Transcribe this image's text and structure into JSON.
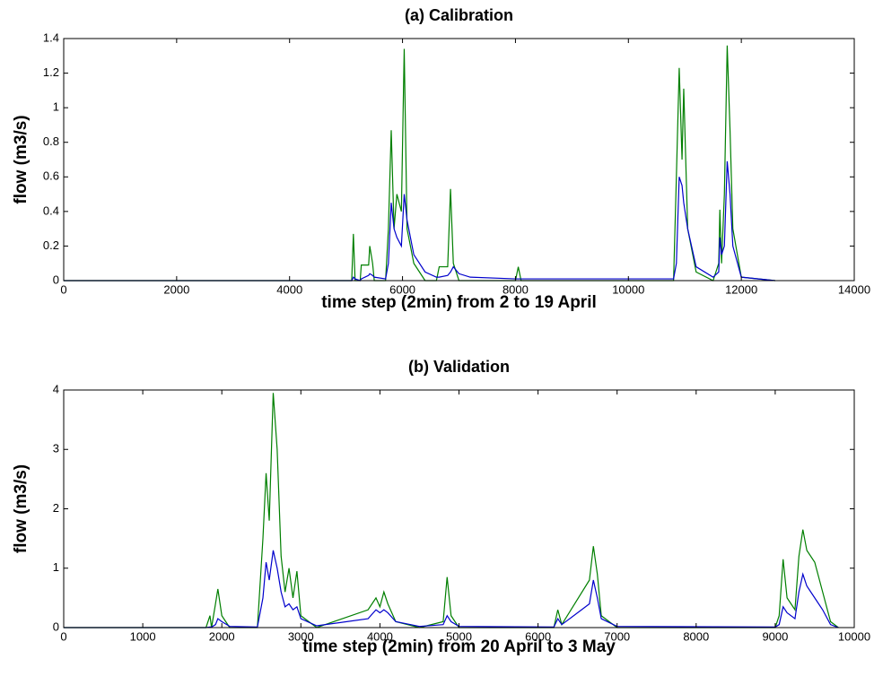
{
  "chart_data": [
    {
      "type": "line",
      "title": "(a) Calibration",
      "x_label": "time step (2min) from 2 to 19 April",
      "y_label": "flow (m3/s)",
      "x": [
        0,
        5050,
        5100,
        5130,
        5160,
        5250,
        5270,
        5400,
        5420,
        5470,
        5500,
        5700,
        5750,
        5800,
        5850,
        5900,
        5980,
        6030,
        6080,
        6200,
        6400,
        6600,
        6650,
        6800,
        6850,
        6900,
        7000,
        7200,
        8000,
        8050,
        8100,
        10800,
        10850,
        10900,
        10950,
        10980,
        11050,
        11200,
        11500,
        11600,
        11620,
        11650,
        11700,
        11750,
        11800,
        11850,
        12000,
        12600
      ],
      "series": [
        {
          "color": "#007f00",
          "values": [
            0,
            0,
            0,
            0.27,
            0,
            0,
            0.09,
            0.09,
            0.2,
            0.1,
            0,
            0,
            0.3,
            0.87,
            0.3,
            0.5,
            0.4,
            1.34,
            0.3,
            0.1,
            0,
            0,
            0.08,
            0.08,
            0.53,
            0.1,
            0,
            0,
            0,
            0.08,
            0,
            0,
            0.6,
            1.23,
            0.7,
            1.11,
            0.3,
            0.05,
            0,
            0.1,
            0.41,
            0.1,
            0.5,
            1.36,
            0.87,
            0.3,
            0.02,
            0
          ]
        },
        {
          "color": "#0000cc",
          "values": [
            0,
            0,
            0,
            0.02,
            0.01,
            0,
            0.01,
            0.03,
            0.04,
            0.03,
            0.02,
            0.01,
            0.1,
            0.45,
            0.3,
            0.25,
            0.2,
            0.5,
            0.35,
            0.15,
            0.05,
            0.02,
            0.02,
            0.03,
            0.05,
            0.08,
            0.04,
            0.02,
            0.01,
            0.01,
            0.01,
            0.01,
            0.1,
            0.6,
            0.55,
            0.45,
            0.3,
            0.08,
            0.02,
            0.05,
            0.25,
            0.15,
            0.2,
            0.69,
            0.5,
            0.2,
            0.02,
            0
          ]
        }
      ],
      "xlim": [
        0,
        14000
      ],
      "xticks": [
        0,
        2000,
        4000,
        6000,
        8000,
        10000,
        12000,
        14000
      ],
      "ylim": [
        0,
        1.4
      ],
      "yticks": [
        0,
        0.2,
        0.4,
        0.6,
        0.8,
        1,
        1.2,
        1.4
      ]
    },
    {
      "type": "line",
      "title": "(b) Validation",
      "x_label": "time step (2min) from 20 April to 3 May",
      "y_label": "flow (m3/s)",
      "x": [
        0,
        1800,
        1850,
        1870,
        1920,
        1950,
        2000,
        2100,
        2450,
        2520,
        2560,
        2600,
        2650,
        2700,
        2750,
        2800,
        2850,
        2900,
        2950,
        3000,
        3200,
        3850,
        3950,
        4000,
        4050,
        4100,
        4200,
        4500,
        4800,
        4850,
        4900,
        5000,
        6200,
        6250,
        6300,
        6650,
        6700,
        6750,
        6800,
        7000,
        9000,
        9050,
        9100,
        9150,
        9250,
        9300,
        9350,
        9400,
        9500,
        9600,
        9700,
        9800
      ],
      "series": [
        {
          "color": "#007f00",
          "values": [
            0,
            0,
            0.2,
            0,
            0.4,
            0.65,
            0.2,
            0,
            0,
            1.5,
            2.6,
            1.8,
            3.95,
            3.0,
            1.2,
            0.6,
            1.0,
            0.5,
            0.95,
            0.2,
            0,
            0.3,
            0.5,
            0.35,
            0.6,
            0.4,
            0.1,
            0,
            0.1,
            0.85,
            0.2,
            0,
            0,
            0.3,
            0.05,
            0.8,
            1.37,
            0.9,
            0.2,
            0,
            0,
            0.2,
            1.15,
            0.5,
            0.3,
            1.2,
            1.65,
            1.3,
            1.1,
            0.6,
            0.1,
            0
          ]
        },
        {
          "color": "#0000cc",
          "values": [
            0,
            0,
            0.01,
            0.01,
            0.05,
            0.15,
            0.1,
            0.02,
            0.01,
            0.5,
            1.1,
            0.8,
            1.3,
            1.0,
            0.6,
            0.35,
            0.4,
            0.3,
            0.35,
            0.15,
            0.03,
            0.15,
            0.3,
            0.25,
            0.3,
            0.25,
            0.1,
            0.02,
            0.05,
            0.2,
            0.1,
            0.02,
            0.01,
            0.15,
            0.05,
            0.4,
            0.8,
            0.5,
            0.15,
            0.02,
            0.01,
            0.05,
            0.35,
            0.25,
            0.15,
            0.6,
            0.9,
            0.7,
            0.5,
            0.3,
            0.05,
            0
          ]
        }
      ],
      "xlim": [
        0,
        10000
      ],
      "xticks": [
        0,
        1000,
        2000,
        3000,
        4000,
        5000,
        6000,
        7000,
        8000,
        9000,
        10000
      ],
      "ylim": [
        0,
        4
      ],
      "yticks": [
        0,
        1,
        2,
        3,
        4
      ]
    }
  ]
}
